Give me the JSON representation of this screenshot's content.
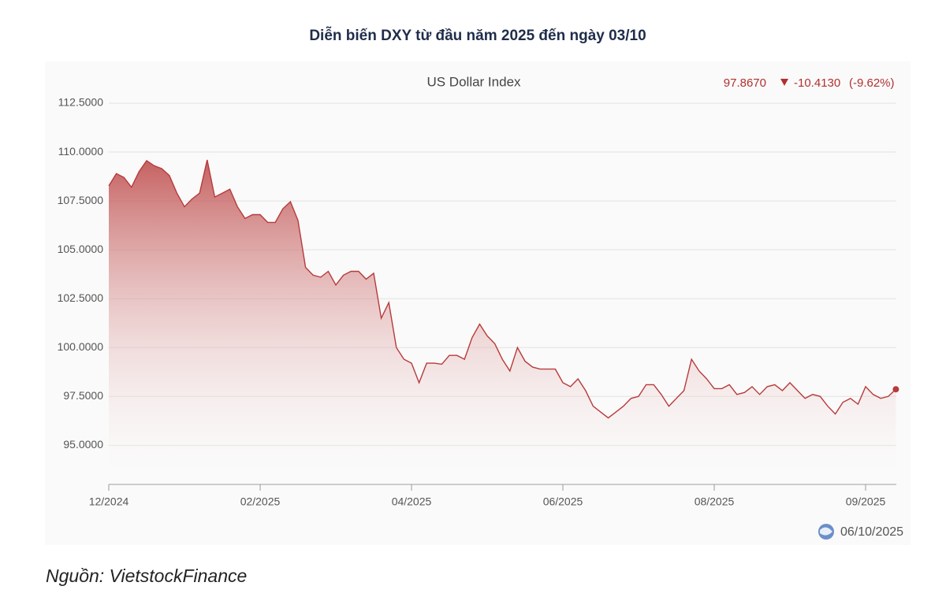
{
  "chart_data": {
    "type": "area",
    "title": "Diễn biến DXY từ đầu năm 2025 đến ngày 03/10",
    "subtitle": "US Dollar Index",
    "last_value": "97.8670",
    "change": "-10.4130",
    "change_pct": "(-9.62%)",
    "date": "06/10/2025",
    "source": "Nguồn: VietstockFinance",
    "color": "#b83a3a",
    "grid": true,
    "categories": [
      "12/2024",
      null,
      null,
      null,
      null,
      null,
      null,
      null,
      null,
      null,
      null,
      null,
      null,
      null,
      null,
      null,
      null,
      null,
      null,
      null,
      "02/2025",
      null,
      null,
      null,
      null,
      null,
      null,
      null,
      null,
      null,
      null,
      null,
      null,
      null,
      null,
      null,
      null,
      null,
      null,
      null,
      "04/2025",
      null,
      null,
      null,
      null,
      null,
      null,
      null,
      null,
      null,
      null,
      null,
      null,
      null,
      null,
      null,
      null,
      null,
      null,
      null,
      "06/2025",
      null,
      null,
      null,
      null,
      null,
      null,
      null,
      null,
      null,
      null,
      null,
      null,
      null,
      null,
      null,
      null,
      null,
      null,
      null,
      "08/2025",
      null,
      null,
      null,
      null,
      null,
      null,
      null,
      null,
      null,
      null,
      null,
      null,
      null,
      null,
      null,
      null,
      null,
      null,
      null,
      "09/2025",
      null,
      null,
      null,
      null
    ],
    "values": [
      108.27,
      108.9,
      108.7,
      108.2,
      109.0,
      109.56,
      109.3,
      109.15,
      108.8,
      107.9,
      107.2,
      107.6,
      107.9,
      109.6,
      107.7,
      107.9,
      108.1,
      107.2,
      106.6,
      106.8,
      106.8,
      106.4,
      106.4,
      107.1,
      107.46,
      106.5,
      104.1,
      103.7,
      103.6,
      103.9,
      103.2,
      103.7,
      103.9,
      103.9,
      103.5,
      103.8,
      101.5,
      102.3,
      100.0,
      99.4,
      99.2,
      98.2,
      99.2,
      99.2,
      99.15,
      99.6,
      99.6,
      99.4,
      100.5,
      101.2,
      100.6,
      100.2,
      99.4,
      98.8,
      100.0,
      99.3,
      99.0,
      98.9,
      98.9,
      98.9,
      98.2,
      98.0,
      98.4,
      97.8,
      97.0,
      96.7,
      96.4,
      96.7,
      97.0,
      97.4,
      97.5,
      98.1,
      98.1,
      97.6,
      97.0,
      97.4,
      97.8,
      99.4,
      98.8,
      98.4,
      97.9,
      97.9,
      98.1,
      97.6,
      97.7,
      98.0,
      97.6,
      98.0,
      98.1,
      97.8,
      98.2,
      97.8,
      97.4,
      97.6,
      97.5,
      97.0,
      96.6,
      97.2,
      97.4,
      97.1,
      98.0,
      97.6,
      97.4,
      97.5,
      97.867
    ],
    "ylim": [
      93,
      112.5
    ],
    "yticks": [
      {
        "value": 95,
        "label": "95.0000"
      },
      {
        "value": 97.5,
        "label": "97.5000"
      },
      {
        "value": 100,
        "label": "100.0000"
      },
      {
        "value": 102.5,
        "label": "102.5000"
      },
      {
        "value": 105,
        "label": "105.0000"
      },
      {
        "value": 107.5,
        "label": "107.5000"
      },
      {
        "value": 110,
        "label": "110.0000"
      },
      {
        "value": 112.5,
        "label": "112.5000"
      }
    ]
  }
}
